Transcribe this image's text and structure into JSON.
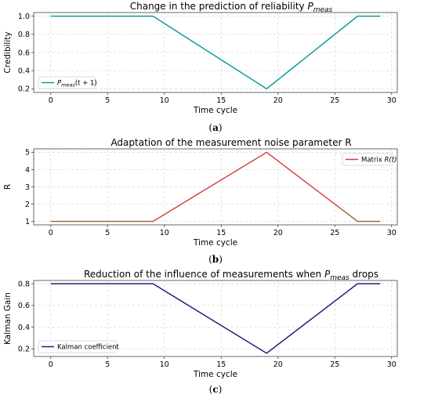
{
  "chart_data": [
    {
      "type": "line",
      "title": "Change in the prediction of reliability",
      "title_var": "P",
      "title_var_sub": "meas",
      "xlabel": "Time cycle",
      "ylabel": "Credibility",
      "xlim": [
        -1.5,
        30.5
      ],
      "ylim": [
        0.16,
        1.04
      ],
      "xticks": [
        "0",
        "5",
        "10",
        "15",
        "20",
        "25",
        "30"
      ],
      "yticks": [
        "0.2",
        "0.4",
        "0.6",
        "0.8",
        "1.0"
      ],
      "grid": true,
      "legend_position": "lower-left",
      "series": [
        {
          "name": "P",
          "name_sub": "meas",
          "name_suffix": "(t + 1)",
          "color": "#109a9a",
          "x": [
            0,
            9,
            19,
            27,
            29
          ],
          "y": [
            1.0,
            1.0,
            0.2,
            1.0,
            1.0
          ]
        }
      ],
      "caption": "a"
    },
    {
      "type": "line",
      "title": "Adaptation of the measurement noise parameter R",
      "xlabel": "Time cycle",
      "ylabel": "R",
      "xlim": [
        -1.5,
        30.5
      ],
      "ylim": [
        0.8,
        5.2
      ],
      "xticks": [
        "0",
        "5",
        "10",
        "15",
        "20",
        "25",
        "30"
      ],
      "yticks": [
        "1",
        "2",
        "3",
        "4",
        "5"
      ],
      "grid": true,
      "legend_position": "top-right",
      "series": [
        {
          "name": "Matrix",
          "name_italic": "R(t)",
          "color_start": "#8a6a1e",
          "color_end": "#d13a3a",
          "x": [
            0,
            9,
            19,
            27,
            29
          ],
          "y": [
            1.0,
            1.0,
            5.0,
            1.0,
            1.0
          ]
        }
      ],
      "caption": "b"
    },
    {
      "type": "line",
      "title": "Reduction of the influence of measurements when",
      "title_var": "P",
      "title_var_sub": "meas",
      "title_suffix": "drops",
      "xlabel": "Time cycle",
      "ylabel": "Kalman Gain",
      "xlim": [
        -1.5,
        30.5
      ],
      "ylim": [
        0.13,
        0.83
      ],
      "xticks": [
        "0",
        "5",
        "10",
        "15",
        "20",
        "25",
        "30"
      ],
      "yticks": [
        "0.2",
        "0.4",
        "0.6",
        "0.8"
      ],
      "grid": true,
      "legend_position": "lower-left",
      "series": [
        {
          "name": "Kalman coefficient",
          "color": "#1f1f7a",
          "x": [
            0,
            9,
            19,
            27,
            29
          ],
          "y": [
            0.8,
            0.8,
            0.16,
            0.8,
            0.8
          ]
        }
      ],
      "caption": "c"
    }
  ]
}
